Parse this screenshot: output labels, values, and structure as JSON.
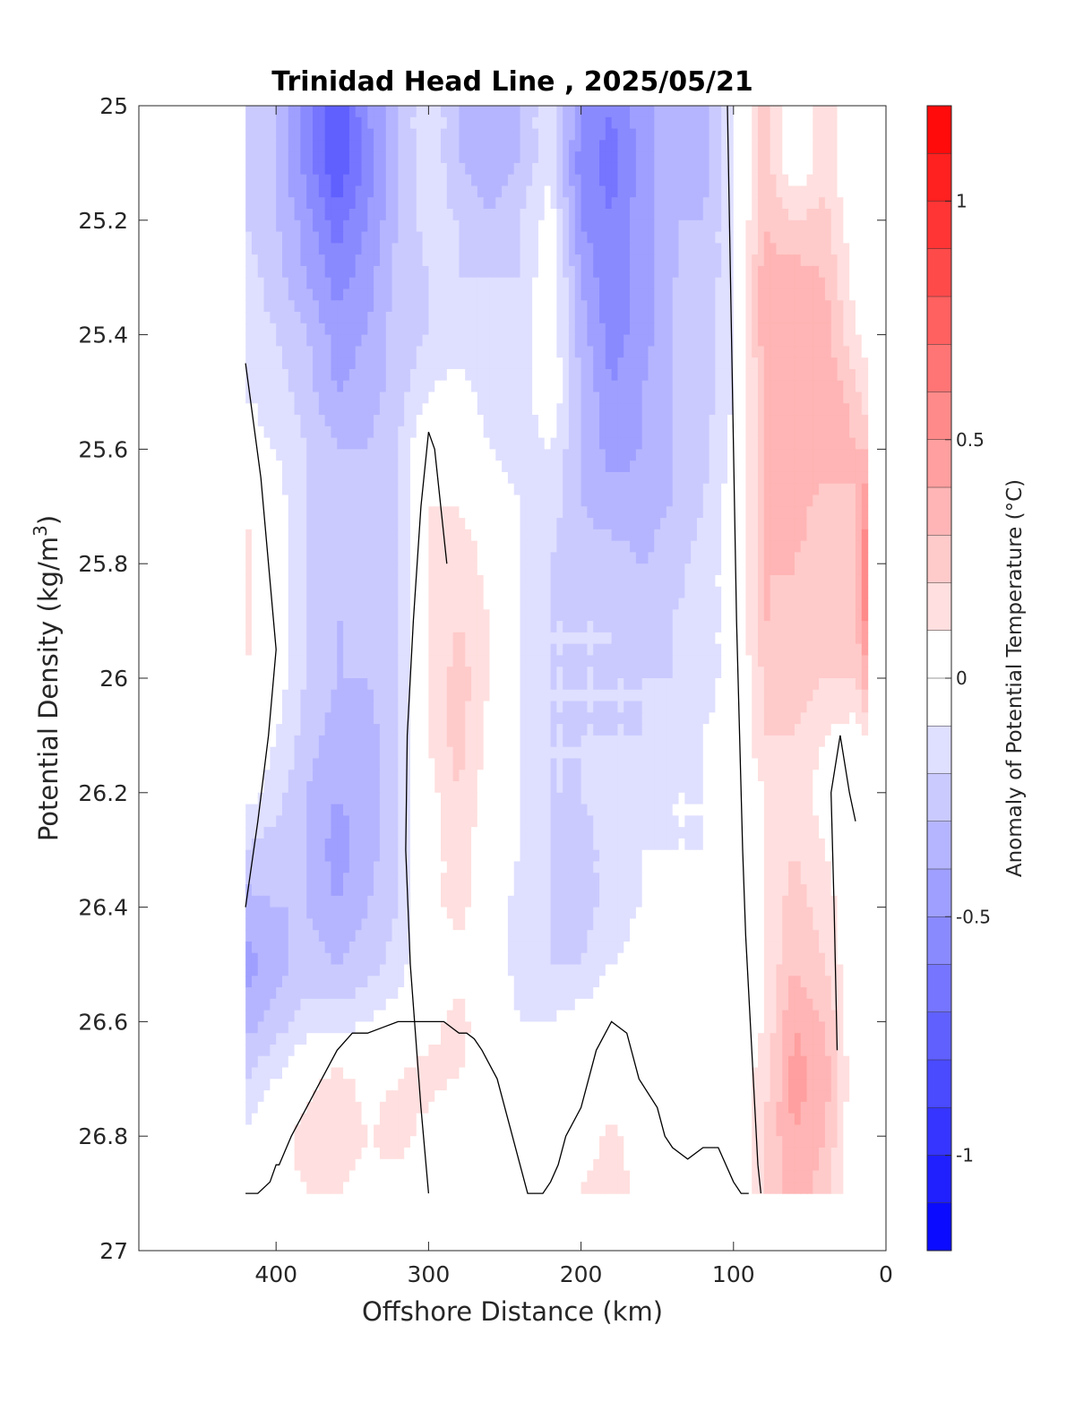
{
  "chart_data": {
    "type": "heatmap",
    "title": "Trinidad Head Line , 2025/05/21",
    "xlabel": "Offshore Distance (km)",
    "ylabel": "Potential Density (kg/m",
    "ylabel_superscript": "3",
    "ylabel_close": ")",
    "colorbar_label": "Anomaly of Potential Temperature (°C)",
    "x_axis_reversed": true,
    "xlim": [
      0,
      490
    ],
    "ylim": [
      25,
      27
    ],
    "y_axis_reversed": true,
    "x_ticks": [
      "400",
      "300",
      "200",
      "100",
      "0"
    ],
    "y_ticks": [
      "25",
      "25.2",
      "25.4",
      "25.6",
      "25.8",
      "26",
      "26.2",
      "26.4",
      "26.6",
      "26.8",
      "27"
    ],
    "colorbar_ticks": [
      "1",
      "0.5",
      "0",
      "-0.5",
      "-1"
    ],
    "colorbar_range": [
      -1.2,
      1.2
    ],
    "data_extent": {
      "x": [
        12,
        420
      ],
      "y": [
        25,
        26.9
      ]
    },
    "x_grid": [
      420,
      400,
      380,
      360,
      340,
      320,
      300,
      280,
      260,
      240,
      220,
      200,
      180,
      160,
      140,
      120,
      100,
      80,
      60,
      40,
      20,
      12
    ],
    "y_grid": [
      25,
      25.1,
      25.2,
      25.3,
      25.4,
      25.5,
      25.6,
      25.7,
      25.8,
      25.9,
      26.0,
      26.1,
      26.2,
      26.3,
      26.4,
      26.5,
      26.6,
      26.7,
      26.8,
      26.9
    ],
    "values": [
      [
        -0.2,
        -0.3,
        -0.55,
        -0.8,
        -0.5,
        -0.3,
        -0.1,
        -0.3,
        -0.35,
        -0.3,
        -0.1,
        -0.5,
        -0.6,
        -0.45,
        -0.3,
        -0.35,
        -0.1,
        0.25,
        0.0,
        0.15,
        0.0,
        0.0
      ],
      [
        -0.2,
        -0.3,
        -0.55,
        -0.8,
        -0.55,
        -0.3,
        -0.1,
        -0.3,
        -0.35,
        -0.3,
        -0.1,
        -0.55,
        -0.65,
        -0.45,
        -0.3,
        -0.35,
        -0.1,
        0.25,
        0.0,
        0.15,
        0.0,
        0.0
      ],
      [
        -0.2,
        -0.3,
        -0.45,
        -0.65,
        -0.5,
        -0.3,
        -0.15,
        -0.2,
        -0.3,
        -0.2,
        -0.05,
        -0.5,
        -0.6,
        -0.45,
        -0.3,
        -0.3,
        -0.1,
        0.3,
        0.2,
        0.25,
        0.0,
        0.0
      ],
      [
        -0.15,
        -0.25,
        -0.4,
        -0.55,
        -0.45,
        -0.25,
        -0.2,
        -0.2,
        -0.2,
        -0.2,
        0.0,
        -0.4,
        -0.6,
        -0.45,
        -0.3,
        -0.3,
        -0.1,
        0.35,
        0.35,
        0.3,
        0.05,
        0.0
      ],
      [
        -0.15,
        -0.2,
        -0.3,
        -0.45,
        -0.4,
        -0.25,
        -0.2,
        -0.15,
        -0.2,
        -0.15,
        0.0,
        -0.35,
        -0.55,
        -0.45,
        -0.3,
        -0.25,
        -0.1,
        0.35,
        0.4,
        0.35,
        0.1,
        0.05
      ],
      [
        -0.1,
        -0.15,
        -0.25,
        -0.4,
        -0.35,
        -0.25,
        -0.1,
        -0.05,
        -0.15,
        -0.15,
        0.0,
        -0.3,
        -0.5,
        -0.4,
        -0.3,
        -0.25,
        -0.1,
        0.3,
        0.4,
        0.4,
        0.25,
        0.1
      ],
      [
        -0.05,
        -0.1,
        -0.2,
        -0.3,
        -0.3,
        -0.2,
        0.05,
        0.05,
        -0.1,
        -0.15,
        -0.1,
        -0.3,
        -0.45,
        -0.4,
        -0.3,
        -0.25,
        -0.05,
        0.3,
        0.4,
        0.35,
        0.3,
        0.3
      ],
      [
        0.1,
        -0.05,
        -0.2,
        -0.2,
        -0.25,
        -0.2,
        0.1,
        0.1,
        0.0,
        -0.1,
        -0.15,
        -0.3,
        -0.35,
        -0.35,
        -0.3,
        -0.2,
        -0.05,
        0.3,
        0.35,
        0.25,
        0.3,
        0.5
      ],
      [
        0.15,
        -0.05,
        -0.2,
        -0.25,
        -0.25,
        -0.2,
        0.1,
        0.2,
        0.05,
        -0.1,
        -0.2,
        -0.25,
        -0.25,
        -0.3,
        -0.25,
        -0.15,
        -0.05,
        0.3,
        0.3,
        0.25,
        0.3,
        0.7
      ],
      [
        0.15,
        -0.05,
        -0.2,
        -0.3,
        -0.3,
        -0.2,
        0.1,
        0.2,
        0.1,
        -0.1,
        -0.2,
        -0.2,
        -0.2,
        -0.25,
        -0.2,
        -0.15,
        -0.05,
        0.3,
        0.3,
        0.2,
        0.25,
        0.6
      ],
      [
        0.1,
        -0.05,
        -0.2,
        -0.3,
        -0.3,
        -0.2,
        0.1,
        0.25,
        0.1,
        -0.1,
        -0.2,
        -0.2,
        -0.2,
        -0.2,
        -0.2,
        -0.15,
        -0.05,
        0.2,
        0.25,
        0.2,
        0.2,
        0.4
      ],
      [
        0.0,
        -0.1,
        -0.25,
        -0.35,
        -0.35,
        -0.2,
        0.1,
        0.25,
        0.05,
        -0.1,
        -0.2,
        -0.2,
        -0.2,
        -0.2,
        -0.15,
        -0.1,
        -0.05,
        0.2,
        0.2,
        0.1,
        0.05,
        0.1
      ],
      [
        -0.05,
        -0.15,
        -0.3,
        -0.4,
        -0.35,
        -0.2,
        0.05,
        0.2,
        0.05,
        -0.1,
        -0.2,
        -0.2,
        -0.15,
        -0.15,
        -0.1,
        -0.1,
        -0.05,
        0.1,
        0.15,
        0.05,
        0.0,
        0.0
      ],
      [
        -0.2,
        -0.25,
        -0.3,
        -0.45,
        -0.35,
        -0.2,
        0.05,
        0.15,
        0.0,
        -0.1,
        -0.2,
        -0.25,
        -0.15,
        -0.1,
        -0.1,
        -0.1,
        -0.05,
        0.1,
        0.2,
        0.1,
        0.0,
        0.0
      ],
      [
        -0.35,
        -0.3,
        -0.3,
        -0.4,
        -0.3,
        -0.2,
        0.05,
        0.15,
        0.0,
        -0.15,
        -0.2,
        -0.25,
        -0.15,
        -0.1,
        -0.05,
        -0.1,
        0.0,
        0.1,
        0.25,
        0.15,
        0.0,
        0.0
      ],
      [
        -0.45,
        -0.35,
        -0.25,
        -0.3,
        -0.25,
        -0.15,
        0.0,
        0.05,
        0.0,
        -0.15,
        -0.2,
        -0.2,
        -0.1,
        -0.05,
        0.0,
        -0.1,
        0.0,
        0.1,
        0.3,
        0.2,
        0.0,
        0.0
      ],
      [
        -0.35,
        -0.25,
        -0.15,
        -0.15,
        -0.1,
        -0.05,
        0.05,
        0.15,
        0.0,
        -0.1,
        -0.1,
        -0.05,
        0.0,
        -0.05,
        0.0,
        0.0,
        0.0,
        0.1,
        0.4,
        0.3,
        0.0,
        0.0
      ],
      [
        -0.2,
        -0.1,
        0.05,
        0.15,
        0.05,
        0.1,
        0.15,
        0.1,
        0.0,
        0.0,
        0.0,
        0.0,
        0.0,
        0.0,
        0.0,
        0.0,
        0.0,
        0.15,
        0.45,
        0.35,
        0.0,
        0.0
      ],
      [
        -0.1,
        0.05,
        0.15,
        0.2,
        0.1,
        0.15,
        0.05,
        -0.1,
        -0.05,
        0.0,
        0.0,
        0.0,
        0.15,
        0.0,
        0.0,
        0.0,
        -0.1,
        0.2,
        0.4,
        0.3,
        0.0,
        0.0
      ],
      [
        0.0,
        0.05,
        0.1,
        0.1,
        0.05,
        0.05,
        0.0,
        -0.05,
        0.0,
        0.0,
        0.0,
        0.1,
        0.2,
        0.05,
        0.0,
        0.0,
        0.0,
        0.2,
        0.35,
        0.25,
        0.0,
        0.0
      ]
    ],
    "zero_contours": [
      {
        "x": [
          420,
          412,
          404,
          400,
          398,
          390,
          380,
          370,
          360,
          350,
          340,
          330,
          320,
          310,
          300,
          290,
          280,
          275,
          270,
          265,
          255,
          250,
          245,
          240,
          235,
          230,
          225,
          220,
          215,
          210,
          200,
          195,
          190,
          180,
          170,
          162,
          150,
          145,
          140,
          130,
          120,
          110,
          100,
          95,
          90
        ],
        "y": [
          26.9,
          26.9,
          26.88,
          26.85,
          26.85,
          26.8,
          26.75,
          26.7,
          26.65,
          26.62,
          26.62,
          26.61,
          26.6,
          26.6,
          26.6,
          26.6,
          26.62,
          26.62,
          26.63,
          26.65,
          26.7,
          26.75,
          26.8,
          26.85,
          26.9,
          26.9,
          26.9,
          26.88,
          26.85,
          26.8,
          26.75,
          26.7,
          26.65,
          26.6,
          26.62,
          26.7,
          26.75,
          26.8,
          26.82,
          26.84,
          26.82,
          26.82,
          26.88,
          26.9,
          26.9
        ]
      },
      {
        "x": [
          420,
          410,
          405,
          400,
          405,
          412,
          420
        ],
        "y": [
          25.45,
          25.65,
          25.8,
          25.95,
          26.1,
          26.25,
          26.4
        ]
      },
      {
        "x": [
          300,
          305,
          312,
          315,
          314,
          310,
          305,
          300,
          296,
          292,
          288
        ],
        "y": [
          26.9,
          26.75,
          26.5,
          26.3,
          26.1,
          25.9,
          25.7,
          25.57,
          25.6,
          25.7,
          25.8
        ]
      },
      {
        "x": [
          104,
          102,
          100,
          98,
          96,
          94,
          92,
          90,
          88,
          86,
          84,
          82
        ],
        "y": [
          25.0,
          25.3,
          25.6,
          25.9,
          26.1,
          26.3,
          26.45,
          26.55,
          26.65,
          26.75,
          26.85,
          26.9
        ]
      },
      {
        "x": [
          32,
          34,
          36,
          30,
          24,
          20
        ],
        "y": [
          26.65,
          26.4,
          26.2,
          26.1,
          26.2,
          26.25
        ]
      }
    ]
  }
}
